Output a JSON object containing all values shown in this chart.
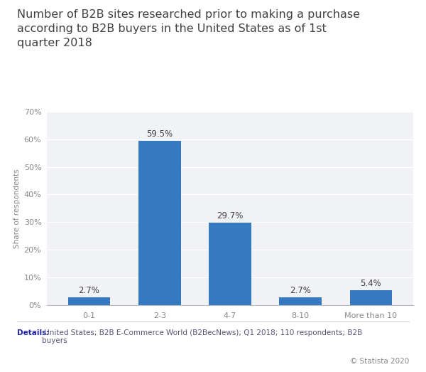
{
  "title": "Number of B2B sites researched prior to making a purchase\naccording to B2B buyers in the United States as of 1st\nquarter 2018",
  "categories": [
    "0-1",
    "2-3",
    "4-7",
    "8-10",
    "More than 10"
  ],
  "values": [
    2.7,
    59.5,
    29.7,
    2.7,
    5.4
  ],
  "bar_color": "#3579c0",
  "plot_bg_color": "#f0f2f5",
  "fig_bg_color": "#ffffff",
  "ylabel": "Share of respondents",
  "ylim": [
    0,
    70
  ],
  "yticks": [
    0,
    10,
    20,
    30,
    40,
    50,
    60,
    70
  ],
  "grid_color": "#ffffff",
  "details_bold": "Details:",
  "details_text": " United States; B2B E-Commerce World (B2BecNews); Q1 2018; 110 respondents; B2B\nbuyers",
  "copyright": "© Statista 2020",
  "bar_label_fontsize": 8.5,
  "title_fontsize": 11.5,
  "tick_fontsize": 8,
  "ylabel_fontsize": 7.5,
  "details_fontsize": 7.5,
  "copyright_fontsize": 7.5,
  "title_color": "#404040",
  "tick_color": "#888888",
  "label_color": "#404040",
  "details_color": "#555577",
  "details_bold_color": "#2222aa",
  "copyright_color": "#888888",
  "separator_color": "#cccccc"
}
